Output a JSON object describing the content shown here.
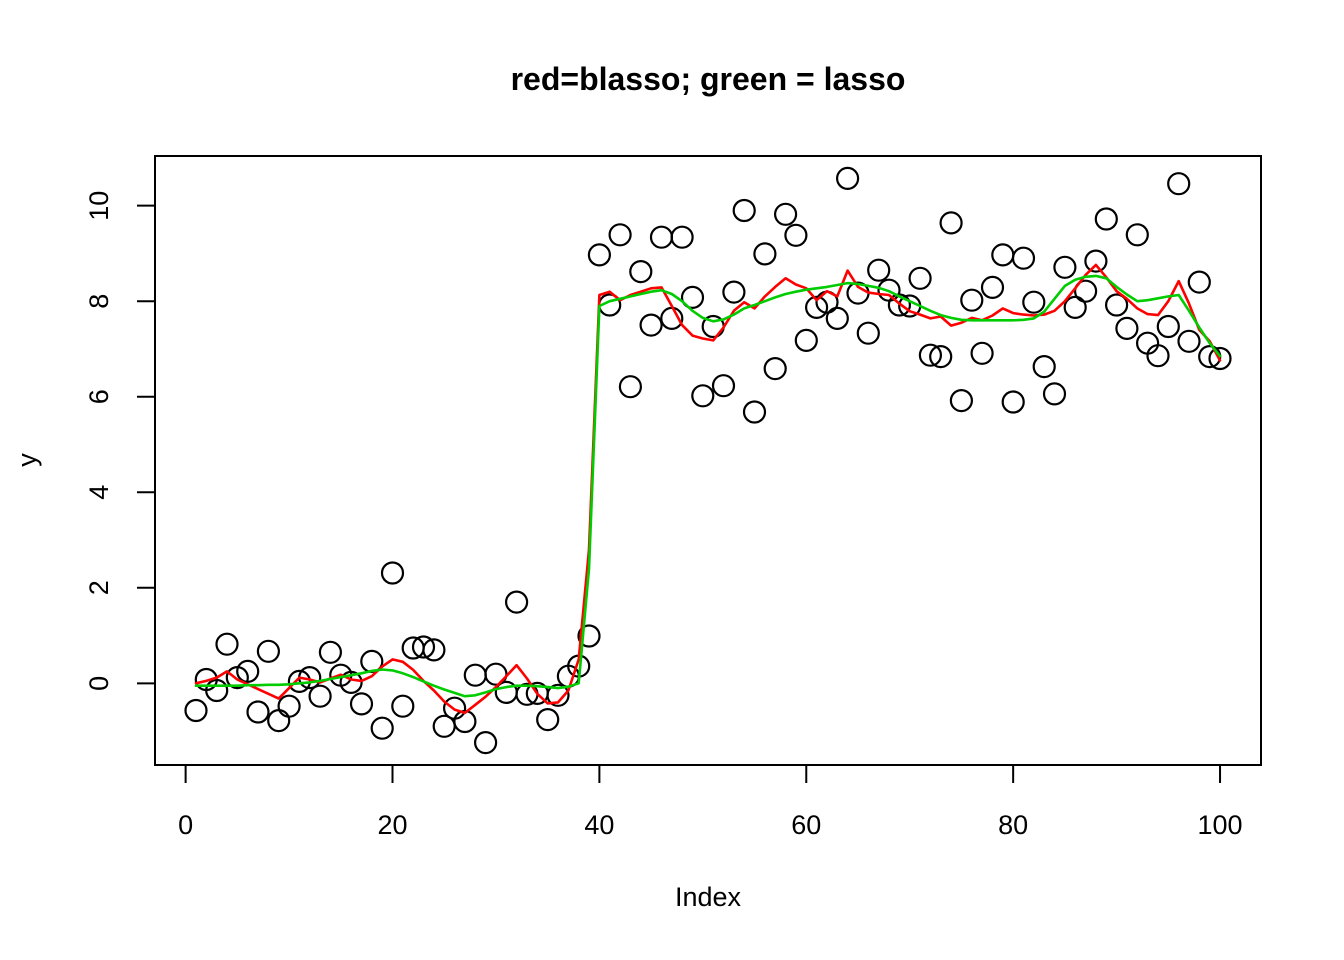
{
  "chart_data": {
    "type": "scatter",
    "title": "red=blasso; green = lasso",
    "xlabel": "Index",
    "ylabel": "y",
    "x_ticks": [
      0,
      20,
      40,
      60,
      80,
      100
    ],
    "y_ticks": [
      0,
      2,
      4,
      6,
      8,
      10
    ],
    "xlim": [
      -2.96,
      103.96
    ],
    "ylim": [
      -1.71,
      11.04
    ],
    "grid": false,
    "legend": "none (legend encoded in title)",
    "point_style": "open black circles",
    "colors": {
      "blasso": "#ff0000",
      "lasso": "#00cc00",
      "points": "#000000"
    },
    "x": [
      1,
      2,
      3,
      4,
      5,
      6,
      7,
      8,
      9,
      10,
      11,
      12,
      13,
      14,
      15,
      16,
      17,
      18,
      19,
      20,
      21,
      22,
      23,
      24,
      25,
      26,
      27,
      28,
      29,
      30,
      31,
      32,
      33,
      34,
      35,
      36,
      37,
      38,
      39,
      40,
      41,
      42,
      43,
      44,
      45,
      46,
      47,
      48,
      49,
      50,
      51,
      52,
      53,
      54,
      55,
      56,
      57,
      58,
      59,
      60,
      61,
      62,
      63,
      64,
      65,
      66,
      67,
      68,
      69,
      70,
      71,
      72,
      73,
      74,
      75,
      76,
      77,
      78,
      79,
      80,
      81,
      82,
      83,
      84,
      85,
      86,
      87,
      88,
      89,
      90,
      91,
      92,
      93,
      94,
      95,
      96,
      97,
      98,
      99,
      100
    ],
    "y_points": [
      -0.57,
      0.08,
      -0.15,
      0.82,
      0.12,
      0.25,
      -0.6,
      0.67,
      -0.78,
      -0.48,
      0.04,
      0.12,
      -0.27,
      0.65,
      0.17,
      0.02,
      -0.43,
      0.46,
      -0.94,
      2.31,
      -0.48,
      0.74,
      0.76,
      0.7,
      -0.9,
      -0.52,
      -0.8,
      0.17,
      -1.24,
      0.19,
      -0.19,
      1.7,
      -0.23,
      -0.21,
      -0.76,
      -0.25,
      0.15,
      0.36,
      0.99,
      8.97,
      7.92,
      9.39,
      6.21,
      8.62,
      7.5,
      9.34,
      7.64,
      9.34,
      8.08,
      6.02,
      7.47,
      6.23,
      8.19,
      9.9,
      5.68,
      8.99,
      6.59,
      9.82,
      9.38,
      7.18,
      7.87,
      7.98,
      7.64,
      10.57,
      8.17,
      7.33,
      8.65,
      8.23,
      7.92,
      7.9,
      8.48,
      6.87,
      6.84,
      9.64,
      5.92,
      8.02,
      6.91,
      8.29,
      8.97,
      5.89,
      8.9,
      7.98,
      6.63,
      6.06,
      8.71,
      7.87,
      8.21,
      8.84,
      9.72,
      7.92,
      7.43,
      9.39,
      7.12,
      6.86,
      7.47,
      10.46,
      7.16,
      8.4,
      6.84,
      6.8
    ],
    "series": [
      {
        "name": "blasso",
        "color": "#ff0000",
        "values": [
          0.0,
          0.05,
          0.12,
          0.25,
          0.08,
          -0.02,
          -0.12,
          -0.22,
          -0.32,
          -0.1,
          0.12,
          0.08,
          0.02,
          0.1,
          0.18,
          0.08,
          0.05,
          0.15,
          0.35,
          0.5,
          0.45,
          0.28,
          0.05,
          -0.15,
          -0.38,
          -0.55,
          -0.62,
          -0.45,
          -0.28,
          -0.08,
          0.15,
          0.38,
          0.1,
          -0.22,
          -0.42,
          -0.4,
          -0.15,
          0.5,
          2.8,
          8.13,
          8.2,
          8.02,
          8.13,
          8.2,
          8.27,
          8.29,
          7.9,
          7.5,
          7.28,
          7.22,
          7.18,
          7.45,
          7.8,
          7.98,
          7.85,
          8.1,
          8.3,
          8.48,
          8.35,
          8.27,
          8.02,
          8.21,
          8.1,
          8.64,
          8.3,
          8.18,
          8.15,
          8.13,
          7.95,
          7.79,
          7.72,
          7.64,
          7.68,
          7.49,
          7.55,
          7.65,
          7.6,
          7.7,
          7.85,
          7.75,
          7.72,
          7.7,
          7.72,
          7.8,
          8.0,
          8.27,
          8.55,
          8.76,
          8.5,
          8.21,
          8.05,
          7.85,
          7.73,
          7.71,
          8.0,
          8.42,
          7.95,
          7.4,
          7.16,
          6.76
        ]
      },
      {
        "name": "lasso",
        "color": "#00cc00",
        "values": [
          -0.05,
          -0.05,
          -0.05,
          -0.05,
          -0.05,
          -0.04,
          -0.04,
          -0.03,
          -0.03,
          -0.02,
          0.0,
          0.02,
          0.05,
          0.09,
          0.13,
          0.17,
          0.21,
          0.26,
          0.29,
          0.27,
          0.21,
          0.13,
          0.04,
          -0.05,
          -0.13,
          -0.2,
          -0.27,
          -0.25,
          -0.19,
          -0.12,
          -0.08,
          -0.05,
          -0.05,
          -0.06,
          -0.08,
          -0.1,
          -0.07,
          0.0,
          2.4,
          7.9,
          8.0,
          8.05,
          8.1,
          8.15,
          8.2,
          8.23,
          8.15,
          8.0,
          7.8,
          7.65,
          7.58,
          7.62,
          7.72,
          7.85,
          7.92,
          8.0,
          8.08,
          8.15,
          8.2,
          8.24,
          8.27,
          8.3,
          8.34,
          8.38,
          8.36,
          8.32,
          8.28,
          8.21,
          8.1,
          8.0,
          7.9,
          7.8,
          7.71,
          7.65,
          7.61,
          7.6,
          7.6,
          7.6,
          7.6,
          7.6,
          7.61,
          7.64,
          7.78,
          8.05,
          8.32,
          8.45,
          8.51,
          8.53,
          8.48,
          8.3,
          8.14,
          8.0,
          8.02,
          8.06,
          8.1,
          8.13,
          7.8,
          7.45,
          7.12,
          6.85
        ]
      }
    ]
  }
}
